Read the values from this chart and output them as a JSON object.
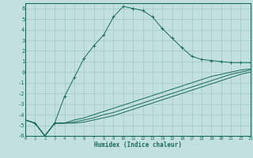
{
  "xlabel": "Humidex (Indice chaleur)",
  "bg_color": "#c2e0e0",
  "line_color": "#1a6b5a",
  "grid_color": "#a0c8c0",
  "x_min": 0,
  "x_max": 23,
  "y_min": -6,
  "y_max": 6.5,
  "line1_x": [
    0,
    1,
    2,
    3,
    4,
    5,
    6,
    7,
    8,
    9,
    10,
    11,
    12,
    13,
    14,
    15,
    16,
    17,
    18,
    19,
    20,
    21,
    22,
    23
  ],
  "line1_y": [
    -4.5,
    -4.8,
    -6.0,
    -4.8,
    -2.3,
    -0.5,
    1.3,
    2.5,
    3.5,
    5.2,
    6.2,
    6.0,
    5.8,
    5.2,
    4.1,
    3.2,
    2.3,
    1.5,
    1.2,
    1.1,
    1.0,
    0.9,
    0.9,
    0.9
  ],
  "line2_x": [
    0,
    1,
    2,
    3,
    4,
    5,
    6,
    7,
    8,
    9,
    10,
    11,
    12,
    13,
    14,
    15,
    16,
    17,
    18,
    19,
    20,
    21,
    22,
    23
  ],
  "line2_y": [
    -4.5,
    -4.8,
    -6.0,
    -4.8,
    -4.8,
    -4.5,
    -4.3,
    -4.0,
    -3.7,
    -3.4,
    -3.1,
    -2.8,
    -2.5,
    -2.2,
    -1.9,
    -1.6,
    -1.3,
    -1.0,
    -0.7,
    -0.4,
    -0.2,
    0.0,
    0.2,
    0.3
  ],
  "line3_x": [
    0,
    1,
    2,
    3,
    4,
    5,
    6,
    7,
    8,
    9,
    10,
    11,
    12,
    13,
    14,
    15,
    16,
    17,
    18,
    19,
    20,
    21,
    22,
    23
  ],
  "line3_y": [
    -4.5,
    -4.8,
    -6.0,
    -4.8,
    -4.8,
    -4.7,
    -4.5,
    -4.3,
    -4.0,
    -3.8,
    -3.5,
    -3.2,
    -2.9,
    -2.6,
    -2.3,
    -2.0,
    -1.7,
    -1.4,
    -1.1,
    -0.8,
    -0.5,
    -0.2,
    0.0,
    0.2
  ],
  "line4_x": [
    0,
    1,
    2,
    3,
    4,
    5,
    6,
    7,
    8,
    9,
    10,
    11,
    12,
    13,
    14,
    15,
    16,
    17,
    18,
    19,
    20,
    21,
    22,
    23
  ],
  "line4_y": [
    -4.5,
    -4.8,
    -6.0,
    -4.8,
    -4.8,
    -4.8,
    -4.7,
    -4.5,
    -4.3,
    -4.1,
    -3.8,
    -3.5,
    -3.2,
    -2.9,
    -2.6,
    -2.3,
    -2.0,
    -1.7,
    -1.4,
    -1.1,
    -0.8,
    -0.5,
    -0.2,
    0.0
  ],
  "yticks": [
    -6,
    -5,
    -4,
    -3,
    -2,
    -1,
    0,
    1,
    2,
    3,
    4,
    5,
    6
  ],
  "xticks": [
    0,
    1,
    2,
    3,
    4,
    5,
    6,
    7,
    8,
    9,
    10,
    11,
    12,
    13,
    14,
    15,
    16,
    17,
    18,
    19,
    20,
    21,
    22,
    23
  ]
}
